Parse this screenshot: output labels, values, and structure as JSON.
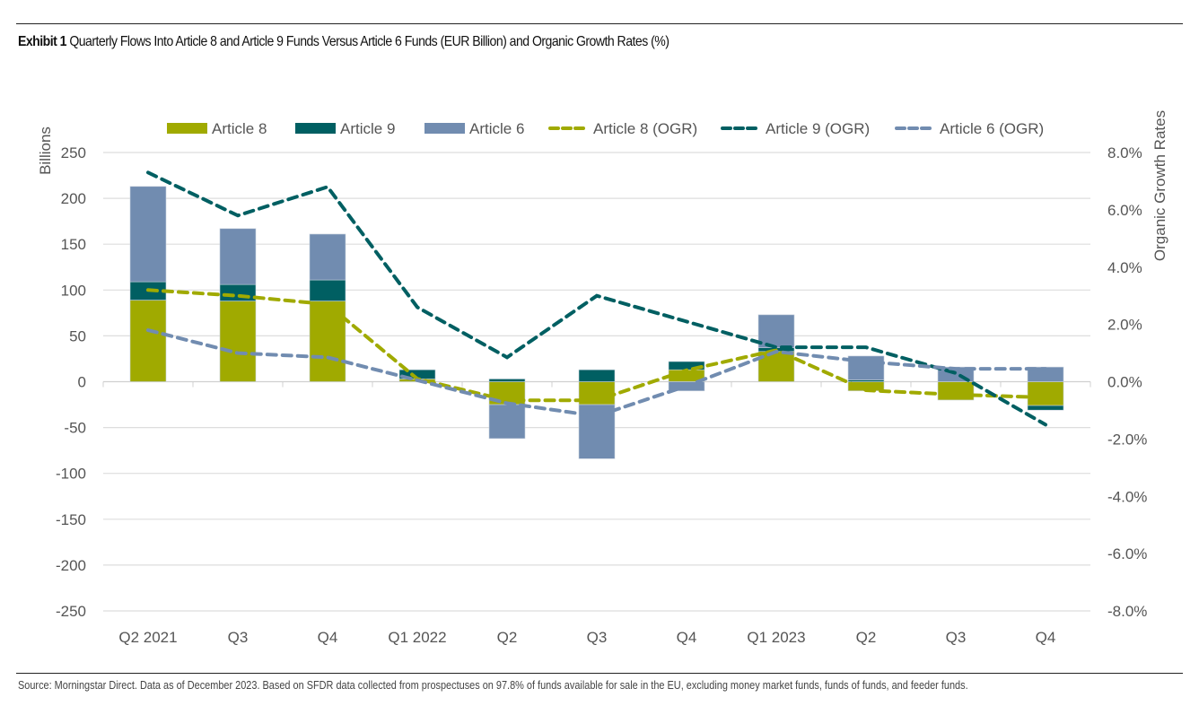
{
  "title": {
    "prefix": "Exhibit 1",
    "text": "Quarterly Flows Into Article 8 and Article 9 Funds Versus Article 6 Funds (EUR Billion) and Organic Growth Rates (%)"
  },
  "source": "Source: Morningstar Direct. Data as of December 2023. Based on SFDR data collected from prospectuses on 97.8% of funds available for sale in the EU, excluding money market funds, funds of funds, and feeder funds.",
  "chart_data": {
    "type": "bar",
    "subtype": "stacked bar with dashed line overlays on secondary axis",
    "title": "Quarterly Flows Into Article 8 and Article 9 Funds Versus Article 6 Funds (EUR Billion) and Organic Growth Rates (%)",
    "categories": [
      "Q2 2021",
      "Q3",
      "Q4",
      "Q1 2022",
      "Q2",
      "Q3",
      "Q4",
      "Q1 2023",
      "Q2",
      "Q3",
      "Q4"
    ],
    "ylabel": "Billions",
    "y2label": "Organic Growth Rates",
    "ylim": [
      -250,
      250
    ],
    "yticks": [
      250,
      200,
      150,
      100,
      50,
      0,
      -50,
      -100,
      -150,
      -200,
      -250
    ],
    "y2lim": [
      -8,
      8
    ],
    "y2ticks": [
      "8.0%",
      "6.0%",
      "4.0%",
      "2.0%",
      "0.0%",
      "-2.0%",
      "-4.0%",
      "-6.0%",
      "-8.0%"
    ],
    "y2tick_values": [
      8,
      6,
      4,
      2,
      0,
      -2,
      -4,
      -6,
      -8
    ],
    "grid": true,
    "legend_position": "top",
    "bar_series": [
      {
        "name": "Article 8",
        "color": "#a0aa00",
        "values": [
          89,
          88,
          88,
          3,
          -25,
          -25,
          13,
          33,
          -10,
          -20,
          -26
        ]
      },
      {
        "name": "Article 9",
        "color": "#005f62",
        "values": [
          20,
          18,
          23,
          10,
          3,
          13,
          9,
          4,
          2,
          0,
          -5
        ]
      },
      {
        "name": "Article 6",
        "color": "#718cb0",
        "values": [
          104,
          61,
          50,
          0,
          -37,
          -59,
          -10,
          36,
          26,
          16,
          16
        ]
      }
    ],
    "line_series": [
      {
        "name": "Article 8 (OGR)",
        "color": "#a0aa00",
        "axis": "right",
        "values": [
          3.2,
          3.0,
          2.7,
          0.1,
          -0.65,
          -0.65,
          0.4,
          1.1,
          -0.3,
          -0.45,
          -0.55
        ]
      },
      {
        "name": "Article 9 (OGR)",
        "color": "#005f62",
        "axis": "right",
        "values": [
          7.3,
          5.8,
          6.8,
          2.6,
          0.85,
          3.0,
          2.1,
          1.2,
          1.2,
          0.3,
          -1.5
        ]
      },
      {
        "name": "Article 6 (OGR)",
        "color": "#718cb0",
        "axis": "right",
        "values": [
          1.8,
          1.0,
          0.85,
          0.05,
          -0.75,
          -1.2,
          -0.15,
          1.05,
          0.7,
          0.45,
          0.45
        ]
      }
    ]
  }
}
